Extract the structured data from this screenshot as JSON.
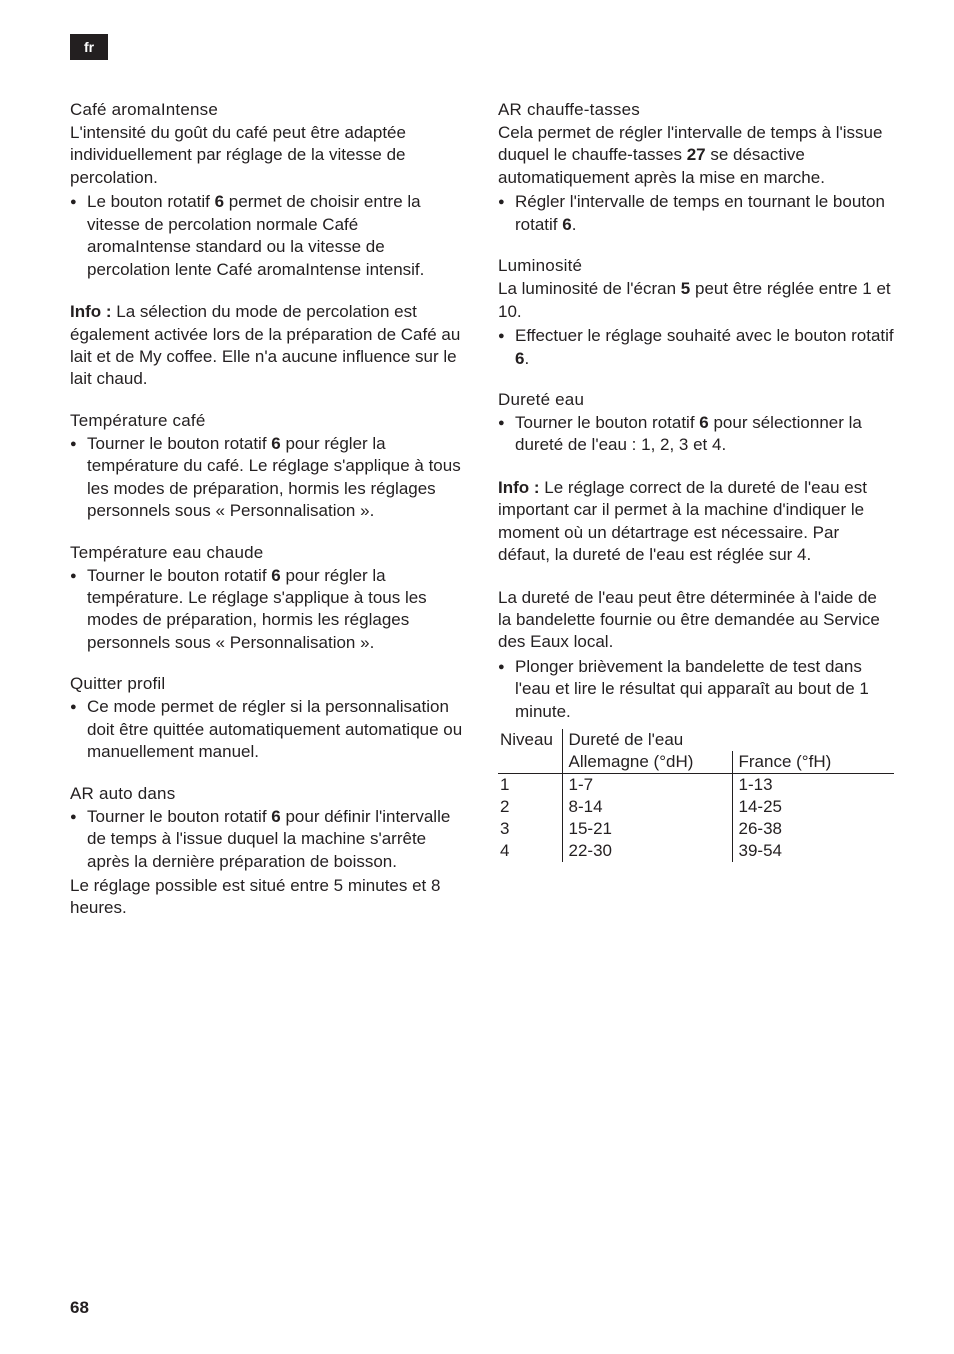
{
  "lang_tag": "fr",
  "page_number": "68",
  "left": {
    "s1": {
      "heading": "Café aromaIntense",
      "p1": "L'intensité du goût du café peut être adaptée individuellement par réglage de la vitesse de percolation.",
      "bullet": "Le bouton rotatif 6 permet de choisir entre la vitesse de percolation normale Café aromaIntense standard ou la vitesse de percolation lente Café aromaIntense intensif.",
      "info": "Info : La sélection du mode de percolation est également activée lors de la préparation de Café au lait et de My coffee. Elle n'a aucune influence sur le lait chaud."
    },
    "s2": {
      "heading": "Température café",
      "bullet": "Tourner le bouton rotatif 6 pour régler la température du café. Le réglage s'applique à tous les modes de préparation, hormis les réglages personnels sous « Personnalisation »."
    },
    "s3": {
      "heading": "Température eau chaude",
      "bullet": "Tourner le bouton rotatif 6 pour régler la température. Le réglage s'applique à tous les modes de préparation, hormis les réglages personnels sous « Personnalisation »."
    },
    "s4": {
      "heading": "Quitter profil",
      "bullet": "Ce mode permet de régler si la personnalisation doit être quittée automatiquement automatique ou manuellement manuel."
    },
    "s5": {
      "heading": "AR auto dans",
      "bullet": "Tourner le bouton rotatif 6 pour définir l'intervalle de temps à l'issue duquel la machine s'arrête après la dernière préparation de boisson.",
      "p1": "Le réglage possible est situé entre 5 minutes et 8 heures."
    }
  },
  "right": {
    "s1": {
      "heading": "AR chauffe-tasses",
      "p1": "Cela permet de régler l'intervalle de temps à l'issue duquel le chauffe-tasses 27 se désactive automatiquement après la mise en marche.",
      "bullet": "Régler l'intervalle de temps en tournant le bouton rotatif 6."
    },
    "s2": {
      "heading": "Luminosité",
      "p1": "La luminosité de l'écran 5 peut être réglée entre 1 et 10.",
      "bullet": "Effectuer le réglage souhaité avec le bouton rotatif 6."
    },
    "s3": {
      "heading": "Dureté eau",
      "bullet": "Tourner le bouton rotatif 6 pour sélectionner la dureté de l'eau : 1, 2, 3 et 4.",
      "info": "Info : Le réglage correct de la dureté de l'eau est important car il permet à la machine d'indiquer le moment où un détartrage est nécessaire. Par défaut, la dureté de l'eau est réglée sur 4.",
      "p2": "La dureté de l'eau peut être déterminée à l'aide de la bandelette fournie ou être demandée au Service des Eaux local.",
      "bullet2": "Plonger brièvement la bandelette de test dans l'eau et lire le résultat qui apparaît au bout de 1 minute."
    },
    "table": {
      "h_niveau": "Niveau",
      "h_durete": "Dureté de l'eau",
      "h_de": "Allemagne (°dH)",
      "h_fr": "France (°fH)",
      "rows": [
        {
          "n": "1",
          "de": "1-7",
          "fr": "1-13"
        },
        {
          "n": "2",
          "de": "8-14",
          "fr": "14-25"
        },
        {
          "n": "3",
          "de": "15-21",
          "fr": "26-38"
        },
        {
          "n": "4",
          "de": "22-30",
          "fr": "39-54"
        }
      ]
    }
  }
}
